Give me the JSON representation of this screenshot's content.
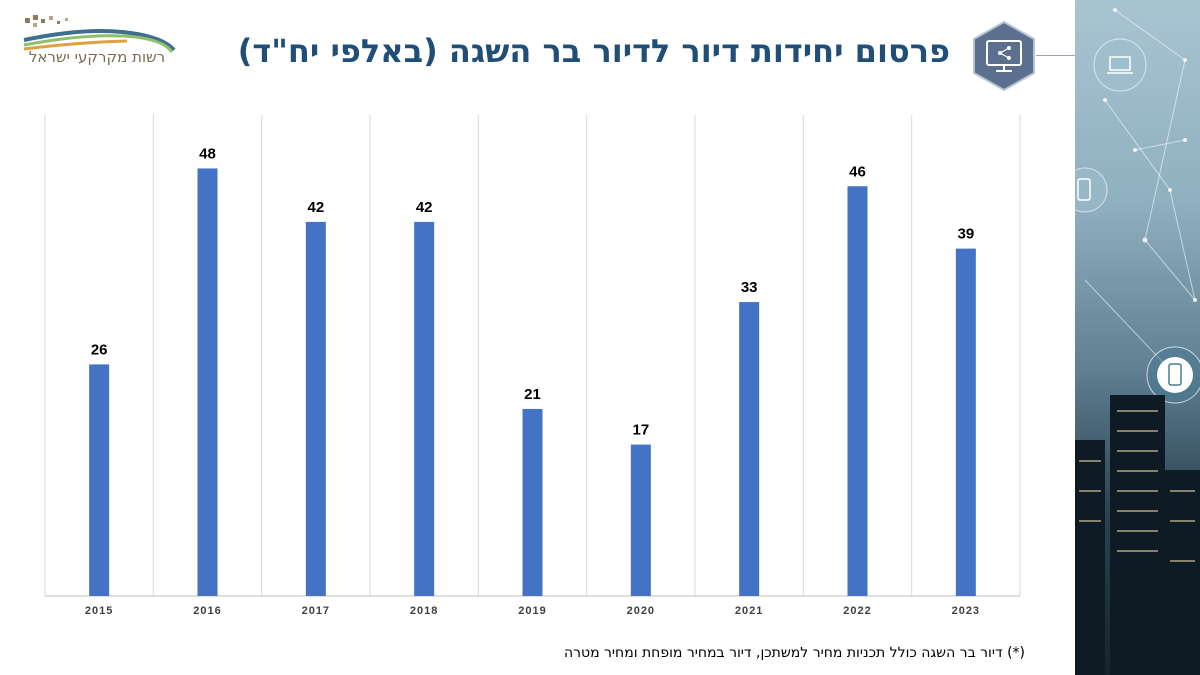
{
  "logo": {
    "text": "רשות מקרקעי ישראל"
  },
  "header": {
    "title": "פרסום יחידות דיור לדיור בר השגה (באלפי יח\"ד)"
  },
  "colors": {
    "bar": "#4472C4",
    "title": "#1f4e79",
    "icon_bg": "#5b6f8f"
  },
  "icons": {
    "title_icon": "share-monitor-icon",
    "side_icons": [
      "laptop-icon",
      "phone-icon",
      "tablet-icon"
    ]
  },
  "chart_data": {
    "type": "bar",
    "categories": [
      "2015",
      "2016",
      "2017",
      "2018",
      "2019",
      "2020",
      "2021",
      "2022",
      "2023"
    ],
    "values": [
      26,
      48,
      42,
      42,
      21,
      17,
      33,
      46,
      39
    ],
    "title": "",
    "xlabel": "",
    "ylabel": "",
    "ylim": [
      0,
      54
    ],
    "grid": "vertical",
    "data_labels": true
  },
  "footnote": "(*) דיור בר השגה כולל תכניות מחיר למשתכן, דיור במחיר מופחת ומחיר מטרה"
}
